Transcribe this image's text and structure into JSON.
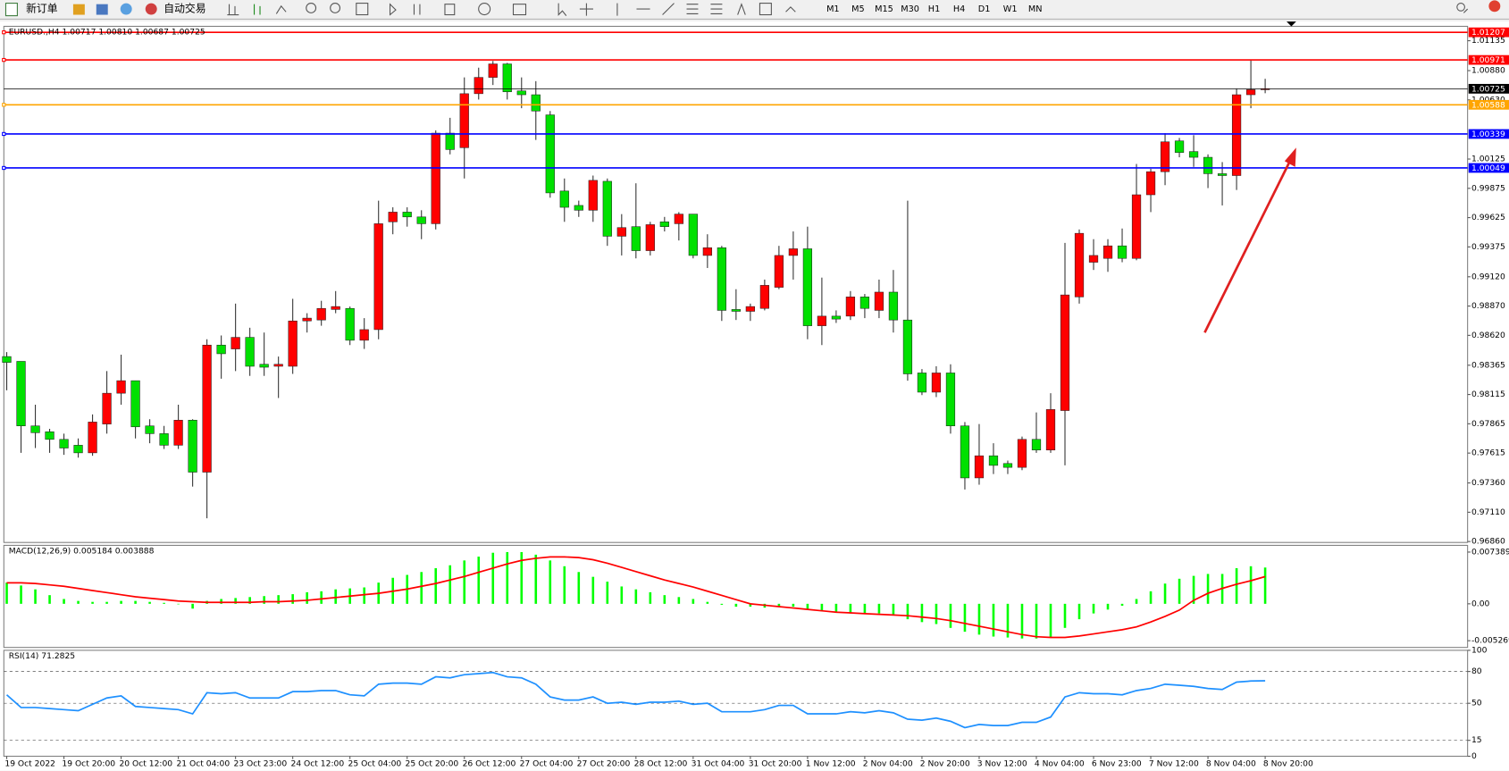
{
  "toolbar": {
    "new_order": "新订单",
    "auto_trading": "自动交易",
    "timeframes": [
      "M1",
      "M5",
      "M15",
      "M30",
      "H1",
      "H4",
      "D1",
      "W1",
      "MN"
    ]
  },
  "chart_data": [
    {
      "type": "candlestick",
      "title": "EURUSD.,H4  1.00717 1.00810 1.00687 1.00725",
      "categories": [
        "19 Oct 2022",
        null,
        null,
        null,
        "19 Oct 20:00",
        null,
        null,
        null,
        "20 Oct 12:00",
        null,
        null,
        null,
        "21 Oct 04:00",
        null,
        null,
        null,
        "23 Oct 23:00",
        null,
        null,
        null,
        "24 Oct 12:00",
        null,
        null,
        null,
        "25 Oct 04:00",
        null,
        null,
        null,
        "25 Oct 20:00",
        null,
        null,
        null,
        "26 Oct 12:00",
        null,
        null,
        null,
        "27 Oct 04:00",
        null,
        null,
        null,
        "27 Oct 20:00",
        null,
        null,
        null,
        "28 Oct 12:00",
        null,
        null,
        null,
        "31 Oct 04:00",
        null,
        null,
        null,
        "31 Oct 20:00",
        null,
        null,
        null,
        "1 Nov 12:00",
        null,
        null,
        null,
        "2 Nov 04:00",
        null,
        null,
        null,
        "2 Nov 20:00",
        null,
        null,
        null,
        "3 Nov 12:00",
        null,
        null,
        null,
        "4 Nov 04:00",
        null,
        null,
        null,
        "6 Nov 23:00",
        null,
        null,
        null,
        "7 Nov 12:00",
        null,
        null,
        null,
        "8 Nov 04:00",
        null,
        null,
        null,
        "8 Nov 20:00"
      ],
      "open": [
        0.98439,
        0.98398,
        0.97847,
        0.97797,
        0.97732,
        0.97682,
        0.97617,
        0.97863,
        0.98126,
        0.98233,
        0.97847,
        0.97781,
        0.97682,
        0.97896,
        0.97452,
        0.98537,
        0.98504,
        0.98603,
        0.98373,
        0.98356,
        0.98356,
        0.98743,
        0.98751,
        0.98841,
        0.9885,
        0.98578,
        0.98669,
        0.99589,
        0.99672,
        0.99631,
        0.99573,
        1.00346,
        1.00222,
        1.00683,
        1.00822,
        1.00937,
        1.00707,
        1.00674,
        1.00502,
        0.99852,
        0.99729,
        0.99688,
        0.99935,
        0.99466,
        0.99548,
        0.99343,
        0.99589,
        0.99573,
        0.99655,
        0.99302,
        0.99368,
        0.98841,
        0.98825,
        0.9885,
        0.9903,
        0.99302,
        0.99359,
        0.98702,
        0.98784,
        0.98784,
        0.98948,
        0.98833,
        0.98989,
        0.98751,
        0.98299,
        0.98135,
        0.98299,
        0.97847,
        0.97403,
        0.97592,
        0.97526,
        0.97493,
        0.97732,
        0.97641,
        0.97978,
        0.98948,
        0.99244,
        0.99277,
        0.99384,
        0.99277,
        0.9982,
        1.00017,
        1.0028,
        1.00189,
        1.0014,
        1.0,
        0.99984,
        1.00674,
        1.00717
      ],
      "high": [
        0.98477,
        0.98398,
        0.98028,
        0.97822,
        0.97781,
        0.9774,
        0.97945,
        0.98315,
        0.98455,
        0.98233,
        0.97904,
        0.97847,
        0.98028,
        0.97904,
        0.98587,
        0.98619,
        0.98891,
        0.98685,
        0.98644,
        0.98439,
        0.98932,
        0.98809,
        0.98915,
        0.98998,
        0.98866,
        0.98767,
        0.9977,
        0.99713,
        0.99713,
        0.99688,
        1.0037,
        1.00477,
        1.00822,
        1.00905,
        1.00962,
        1.00946,
        1.00822,
        1.0079,
        1.00535,
        0.99959,
        0.9977,
        0.99984,
        0.99959,
        0.99655,
        0.99918,
        0.99589,
        0.99631,
        0.99672,
        0.99655,
        0.99483,
        0.99384,
        0.99014,
        0.98891,
        0.99096,
        0.99384,
        0.99507,
        0.99548,
        0.99113,
        0.98833,
        0.98998,
        0.98973,
        0.99096,
        0.99178,
        0.9977,
        0.98332,
        0.98356,
        0.98373,
        0.9788,
        0.97863,
        0.97699,
        0.97551,
        0.97756,
        0.97962,
        0.98126,
        0.99409,
        0.99524,
        0.99441,
        0.99441,
        0.99532,
        1.00083,
        1.00042,
        1.00346,
        1.00305,
        1.00329,
        1.00165,
        1.00099,
        1.00724,
        1.0097,
        1.0081
      ],
      "low": [
        0.98151,
        0.97617,
        0.97658,
        0.97617,
        0.976,
        0.97576,
        0.97592,
        0.97781,
        0.98028,
        0.9774,
        0.97699,
        0.9765,
        0.9765,
        0.97329,
        0.97058,
        0.9825,
        0.98315,
        0.98274,
        0.98274,
        0.98085,
        0.98291,
        0.98644,
        0.98702,
        0.98809,
        0.98537,
        0.98504,
        0.98587,
        0.99483,
        0.99548,
        0.99441,
        0.99524,
        1.00165,
        0.99959,
        1.00633,
        1.00757,
        1.00633,
        1.00559,
        1.00288,
        0.99795,
        0.99589,
        0.99631,
        0.99589,
        0.99384,
        0.99302,
        0.99277,
        0.99302,
        0.99507,
        0.9943,
        0.99277,
        0.99195,
        0.98743,
        0.98751,
        0.98743,
        0.98833,
        0.99014,
        0.99096,
        0.98587,
        0.98537,
        0.98726,
        0.98751,
        0.98767,
        0.98767,
        0.98644,
        0.98233,
        0.9811,
        0.98093,
        0.97781,
        0.97304,
        0.97345,
        0.97436,
        0.97436,
        0.97469,
        0.97617,
        0.97617,
        0.9751,
        0.98891,
        0.99178,
        0.99162,
        0.99244,
        0.99261,
        0.99672,
        0.99902,
        1.0014,
        1.00058,
        0.99877,
        0.99729,
        0.99861,
        1.00559,
        1.00687
      ],
      "close": [
        0.98389,
        0.97847,
        0.97789,
        0.97732,
        0.97658,
        0.97617,
        0.9788,
        0.98126,
        0.98233,
        0.97839,
        0.97781,
        0.97682,
        0.97896,
        0.97452,
        0.98537,
        0.98463,
        0.98603,
        0.98356,
        0.98348,
        0.98373,
        0.98743,
        0.98767,
        0.9885,
        0.98866,
        0.98578,
        0.98669,
        0.99573,
        0.99672,
        0.99631,
        0.99573,
        1.00346,
        1.00206,
        1.00683,
        1.00822,
        1.00937,
        1.00699,
        1.00674,
        1.00535,
        0.99836,
        0.99713,
        0.99688,
        0.99943,
        0.99466,
        0.9954,
        0.99343,
        0.99565,
        0.99548,
        0.99655,
        0.99302,
        0.99368,
        0.98833,
        0.98825,
        0.98866,
        0.99047,
        0.99302,
        0.99359,
        0.98702,
        0.98784,
        0.98759,
        0.98948,
        0.9885,
        0.98989,
        0.98751,
        0.98291,
        0.98135,
        0.98299,
        0.97847,
        0.97403,
        0.97592,
        0.9751,
        0.97493,
        0.97732,
        0.97641,
        0.97987,
        0.98965,
        0.99491,
        0.99302,
        0.99384,
        0.99277,
        0.9982,
        1.00017,
        1.00272,
        1.00181,
        1.0014,
        1.0,
        0.99984,
        1.00674,
        1.00717,
        1.00725
      ],
      "up_color": "#ff0000",
      "down_color": "#00e000",
      "ylim": [
        0.96852,
        1.01258
      ],
      "yticks": [
        1.01135,
        {
          "value": 1.0088,
          "label": "1.00880"
        },
        {
          "value": 1.0063,
          "label": "1.00630"
        },
        1.00125,
        0.99875,
        0.99625,
        0.99375,
        {
          "value": 0.9912,
          "label": "0.99120"
        },
        {
          "value": 0.9887,
          "label": "0.98870"
        },
        {
          "value": 0.9862,
          "label": "0.98620"
        },
        0.98365,
        0.98115,
        0.97865,
        0.97615,
        {
          "value": 0.9736,
          "label": "0.97360"
        },
        {
          "value": 0.9711,
          "label": "0.97110"
        },
        {
          "value": 0.9686,
          "label": "0.96860"
        }
      ],
      "hlines": [
        {
          "value": 1.01207,
          "color": "#ff0000"
        },
        {
          "value": 1.00971,
          "color": "#ff0000"
        },
        {
          "value": 1.00588,
          "color": "#ffa500"
        },
        {
          "value": 1.00339,
          "color": "#0000ff"
        },
        {
          "value": 1.00049,
          "color": "#0000ff"
        }
      ],
      "current_price": {
        "value": 1.00725,
        "color": "#000000"
      }
    },
    {
      "type": "macd",
      "title": "MACD(12,26,9) 0.005184 0.003888",
      "series": [
        {
          "type": "bar",
          "color": "#00ff00",
          "values": [
            0.003027,
            0.002614,
            0.002064,
            0.001238,
            0.000688,
            0.000413,
            0.000275,
            0.000275,
            0.000413,
            0.000413,
            0.000275,
            0.000138,
            0,
            -0.000688,
            0.000413,
            0.000688,
            0.000826,
            0.000963,
            0.001101,
            0.001238,
            0.001376,
            0.001651,
            0.001789,
            0.002064,
            0.002202,
            0.002339,
            0.003027,
            0.003715,
            0.004128,
            0.004541,
            0.005091,
            0.005504,
            0.006192,
            0.006742,
            0.007293,
            0.007389,
            0.007389,
            0.007018,
            0.006192,
            0.005366,
            0.004541,
            0.003853,
            0.003165,
            0.002477,
            0.002064,
            0.001651,
            0.001238,
            0.000963,
            0.000688,
            0.000275,
            -0.000138,
            -0.000413,
            -0.000413,
            -0.00055,
            -0.000413,
            -0.000413,
            -0.000826,
            -0.001101,
            -0.001238,
            -0.001376,
            -0.001376,
            -0.001376,
            -0.001651,
            -0.002202,
            -0.002614,
            -0.00289,
            -0.00344,
            -0.00399,
            -0.004403,
            -0.004678,
            -0.004816,
            -0.004954,
            -0.004954,
            -0.004816,
            -0.00344,
            -0.002202,
            -0.001376,
            -0.000826,
            -0.000275,
            0.000688,
            0.001789,
            0.00289,
            0.003578,
            0.00399,
            0.004266,
            0.004266,
            0.005091,
            0.005366,
            0.005184
          ]
        },
        {
          "type": "line",
          "color": "#ff0000",
          "values": [
            0.003,
            0.003,
            0.0029,
            0.0027,
            0.0025,
            0.0022,
            0.0019,
            0.0016,
            0.0013,
            0.001,
            0.0008,
            0.0006,
            0.0004,
            0.0003,
            0.0002,
            0.0002,
            0.0002,
            0.0002,
            0.0003,
            0.0003,
            0.0004,
            0.0005,
            0.0007,
            0.0009,
            0.0011,
            0.0013,
            0.0015,
            0.0018,
            0.0021,
            0.0025,
            0.0029,
            0.0034,
            0.0039,
            0.0045,
            0.0051,
            0.0057,
            0.0062,
            0.0065,
            0.0067,
            0.0067,
            0.0066,
            0.0063,
            0.0058,
            0.0052,
            0.0046,
            0.004,
            0.0034,
            0.0029,
            0.0024,
            0.0018,
            0.0012,
            0.0006,
            0,
            -0.0002,
            -0.0004,
            -0.0006,
            -0.0008,
            -0.001,
            -0.0012,
            -0.0013,
            -0.0014,
            -0.0015,
            -0.0016,
            -0.0017,
            -0.0019,
            -0.0021,
            -0.0024,
            -0.0028,
            -0.0032,
            -0.0036,
            -0.004,
            -0.0044,
            -0.0047,
            -0.0048,
            -0.0048,
            -0.0046,
            -0.0043,
            -0.004,
            -0.0037,
            -0.0033,
            -0.0026,
            -0.0018,
            -0.0009,
            0.0005,
            0.0015,
            0.0022,
            0.0028,
            0.0033,
            0.003888
          ]
        }
      ],
      "ylim": [
        -0.00623,
        0.00835
      ],
      "yticks": [
        0.007389,
        {
          "value": 0,
          "label": "0.00"
        },
        -0.005269
      ]
    },
    {
      "type": "line",
      "title": "RSI(14) 71.2825",
      "color": "#1e90ff",
      "values": [
        58,
        46,
        46,
        45,
        44,
        43,
        49,
        55,
        57,
        47,
        46,
        45,
        44,
        40,
        60,
        59,
        60,
        55,
        55,
        55,
        61,
        61,
        62,
        62,
        58,
        57,
        68,
        69,
        69,
        68,
        75,
        74,
        77,
        78,
        79,
        75,
        74,
        68,
        56,
        53,
        53,
        56,
        50,
        51,
        49,
        51,
        51,
        52,
        49,
        50,
        42,
        42,
        42,
        44,
        48,
        48,
        40,
        40,
        40,
        42,
        41,
        43,
        41,
        35,
        34,
        36,
        33,
        27,
        30,
        29,
        29,
        32,
        32,
        37,
        56,
        60,
        59,
        59,
        58,
        62,
        64,
        68,
        67,
        66,
        64,
        63,
        70,
        71,
        71.2825
      ],
      "ylim": [
        0,
        100
      ],
      "yticks": [
        100,
        80,
        50,
        15,
        0
      ],
      "grid": "dashed"
    }
  ]
}
